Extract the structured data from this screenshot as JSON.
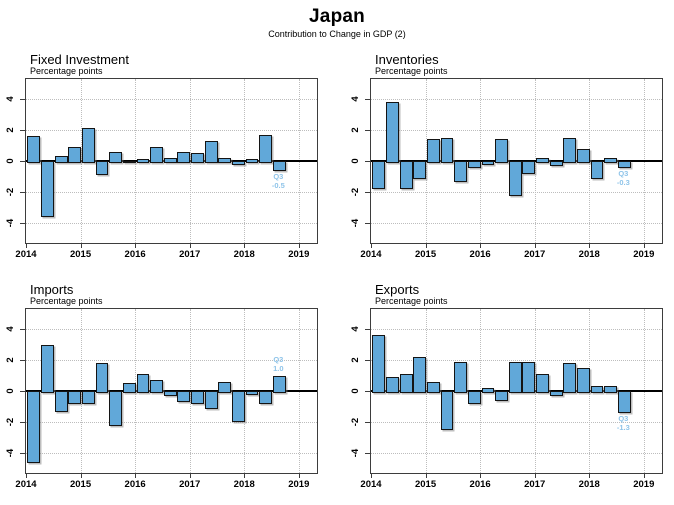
{
  "header": {
    "title": "Japan",
    "subtitle": "Contribution to Change in GDP (2)"
  },
  "colors": {
    "bar_fill": "#61a8d9",
    "bar_border": "#141414",
    "annotation": "#8fc4e9",
    "grid": "#bdbdbd",
    "zero_line": "#000000",
    "frame": "#3d3d3d"
  },
  "quarters": [
    "2014 Q1",
    "2014 Q2",
    "2014 Q3",
    "2014 Q4",
    "2015 Q1",
    "2015 Q2",
    "2015 Q3",
    "2015 Q4",
    "2016 Q1",
    "2016 Q2",
    "2016 Q3",
    "2016 Q4",
    "2017 Q1",
    "2017 Q2",
    "2017 Q3",
    "2017 Q4",
    "2018 Q1",
    "2018 Q2",
    "2018 Q3"
  ],
  "chart_data": [
    {
      "type": "bar",
      "title": "Fixed Investment",
      "ylabel": "Percentage points",
      "xticks": [
        "2014",
        "2015",
        "2016",
        "2017",
        "2018",
        "2019"
      ],
      "yticks": [
        4,
        2,
        0,
        -2,
        -4
      ],
      "ylim": [
        -5.3,
        5.3
      ],
      "grid": true,
      "values": [
        1.6,
        -3.5,
        0.3,
        0.9,
        2.1,
        -0.8,
        0.6,
        0.0,
        0.1,
        0.9,
        0.2,
        0.6,
        0.5,
        1.3,
        0.2,
        -0.1,
        0.1,
        1.7,
        -0.5
      ],
      "annotation": {
        "quarter": "Q3",
        "value": "-0.5"
      }
    },
    {
      "type": "bar",
      "title": "Inventories",
      "ylabel": "Percentage points",
      "xticks": [
        "2014",
        "2015",
        "2016",
        "2017",
        "2018",
        "2019"
      ],
      "yticks": [
        4,
        2,
        0,
        -2,
        -4
      ],
      "ylim": [
        -5.3,
        5.3
      ],
      "grid": true,
      "values": [
        -1.7,
        3.8,
        -1.7,
        -1.0,
        1.4,
        1.5,
        -1.2,
        -0.3,
        -0.1,
        1.4,
        -2.1,
        -0.7,
        0.2,
        -0.2,
        1.5,
        0.8,
        -1.0,
        0.2,
        -0.3
      ],
      "annotation": {
        "quarter": "Q3",
        "value": "-0.3"
      }
    },
    {
      "type": "bar",
      "title": "Imports",
      "ylabel": "Percentage points",
      "xticks": [
        "2014",
        "2015",
        "2016",
        "2017",
        "2018",
        "2019"
      ],
      "yticks": [
        4,
        2,
        0,
        -2,
        -4
      ],
      "ylim": [
        -5.3,
        5.3
      ],
      "grid": true,
      "values": [
        -4.5,
        3.0,
        -1.2,
        -0.7,
        -0.7,
        1.8,
        -2.1,
        0.5,
        1.1,
        0.7,
        -0.2,
        -0.6,
        -0.7,
        -1.0,
        0.6,
        -1.9,
        -0.1,
        -0.7,
        1.0
      ],
      "annotation": {
        "quarter": "Q3",
        "value": "1.0"
      }
    },
    {
      "type": "bar",
      "title": "Exports",
      "ylabel": "Percentage points",
      "xticks": [
        "2014",
        "2015",
        "2016",
        "2017",
        "2018",
        "2019"
      ],
      "yticks": [
        4,
        2,
        0,
        -2,
        -4
      ],
      "ylim": [
        -5.3,
        5.3
      ],
      "grid": true,
      "values": [
        3.6,
        0.9,
        1.1,
        2.2,
        0.6,
        -2.4,
        1.9,
        -0.7,
        0.2,
        -0.5,
        1.9,
        1.9,
        1.1,
        -0.2,
        1.8,
        1.5,
        0.3,
        0.3,
        -1.3
      ],
      "annotation": {
        "quarter": "Q3",
        "value": "-1.3"
      }
    }
  ]
}
